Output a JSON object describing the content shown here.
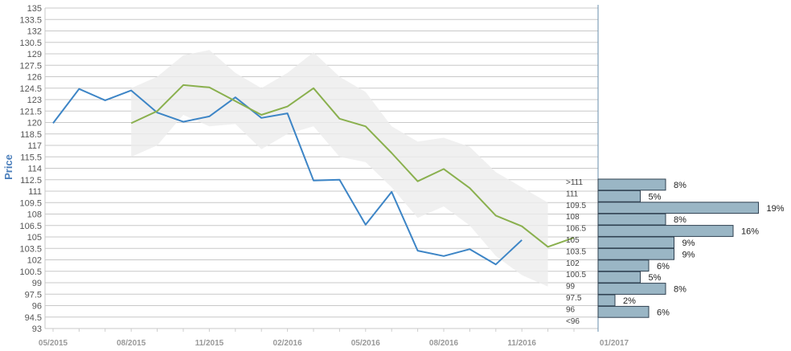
{
  "chart_data": {
    "type": "line",
    "ylabel": "Price",
    "ylim": [
      93,
      135
    ],
    "y_ticks": [
      "135",
      "133.5",
      "132",
      "130.5",
      "129",
      "127.5",
      "126",
      "124.5",
      "123",
      "121.5",
      "120",
      "118.5",
      "117",
      "115.5",
      "114",
      "112.5",
      "111",
      "109.5",
      "108",
      "106.5",
      "105",
      "103.5",
      "102",
      "100.5",
      "99",
      "97.5",
      "96",
      "94.5",
      "93"
    ],
    "x_ticks": [
      "05/2015",
      "08/2015",
      "11/2015",
      "02/2016",
      "05/2016",
      "08/2016",
      "11/2016",
      "01/2017"
    ],
    "grid": true,
    "series": [
      {
        "color": "#3d85c6",
        "x": [
          "2015-05",
          "2015-06",
          "2015-07",
          "2015-08",
          "2015-09",
          "2015-10",
          "2015-11",
          "2015-12",
          "2016-01",
          "2016-02",
          "2016-03",
          "2016-04",
          "2016-05",
          "2016-06",
          "2016-07",
          "2016-08",
          "2016-09",
          "2016-10",
          "2016-11"
        ],
        "values": [
          119.9,
          124.4,
          122.9,
          124.2,
          121.3,
          120.1,
          120.8,
          123.3,
          120.6,
          121.2,
          112.4,
          112.5,
          106.6,
          110.9,
          103.2,
          102.5,
          103.4,
          101.4,
          104.6
        ]
      },
      {
        "color": "#8ab04e",
        "x": [
          "2015-08",
          "2015-09",
          "2015-10",
          "2015-11",
          "2015-12",
          "2016-01",
          "2016-02",
          "2016-03",
          "2016-04",
          "2016-05",
          "2016-06",
          "2016-07",
          "2016-08",
          "2016-09",
          "2016-10",
          "2016-11",
          "2016-12",
          "2017-01"
        ],
        "values": [
          119.9,
          121.5,
          124.9,
          124.6,
          122.8,
          121.0,
          122.1,
          124.5,
          120.5,
          119.5,
          116.0,
          112.3,
          113.9,
          111.4,
          107.8,
          106.4,
          103.7,
          104.9
        ]
      }
    ],
    "band": {
      "color": "#ececec",
      "x": [
        "2015-08",
        "2015-09",
        "2015-10",
        "2015-11",
        "2015-12",
        "2016-01",
        "2016-02",
        "2016-03",
        "2016-04",
        "2016-05",
        "2016-06",
        "2016-07",
        "2016-08",
        "2016-09",
        "2016-10",
        "2016-11",
        "2016-12"
      ],
      "upper": [
        124.5,
        126.0,
        128.8,
        129.5,
        126.5,
        124.5,
        126.5,
        129.2,
        126.0,
        124.0,
        119.5,
        117.5,
        118.0,
        116.8,
        113.5,
        111.5,
        109.5
      ],
      "lower": [
        115.5,
        117.0,
        121.0,
        119.5,
        119.8,
        116.5,
        118.5,
        119.5,
        115.5,
        114.8,
        111.5,
        107.5,
        109.0,
        106.5,
        102.5,
        100.0,
        98.5
      ]
    },
    "distribution": {
      "color": "#9ab6c5",
      "buckets": [
        {
          "label": ">111",
          "value": 8,
          "pct": "8%"
        },
        {
          "label": "111",
          "value": 5,
          "pct": "5%"
        },
        {
          "label": "109.5",
          "value": 19,
          "pct": "19%"
        },
        {
          "label": "108",
          "value": 8,
          "pct": "8%"
        },
        {
          "label": "106.5",
          "value": 16,
          "pct": "16%"
        },
        {
          "label": "105",
          "value": 9,
          "pct": "9%"
        },
        {
          "label": "103.5",
          "value": 9,
          "pct": "9%"
        },
        {
          "label": "102",
          "value": 6,
          "pct": "6%"
        },
        {
          "label": "100.5",
          "value": 5,
          "pct": "5%"
        },
        {
          "label": "99",
          "value": 8,
          "pct": "8%"
        },
        {
          "label": "97.5",
          "value": 2,
          "pct": "2%"
        },
        {
          "label": "96",
          "value": 6,
          "pct": "6%"
        },
        {
          "label": "<96",
          "value": 0,
          "pct": ""
        }
      ]
    }
  }
}
